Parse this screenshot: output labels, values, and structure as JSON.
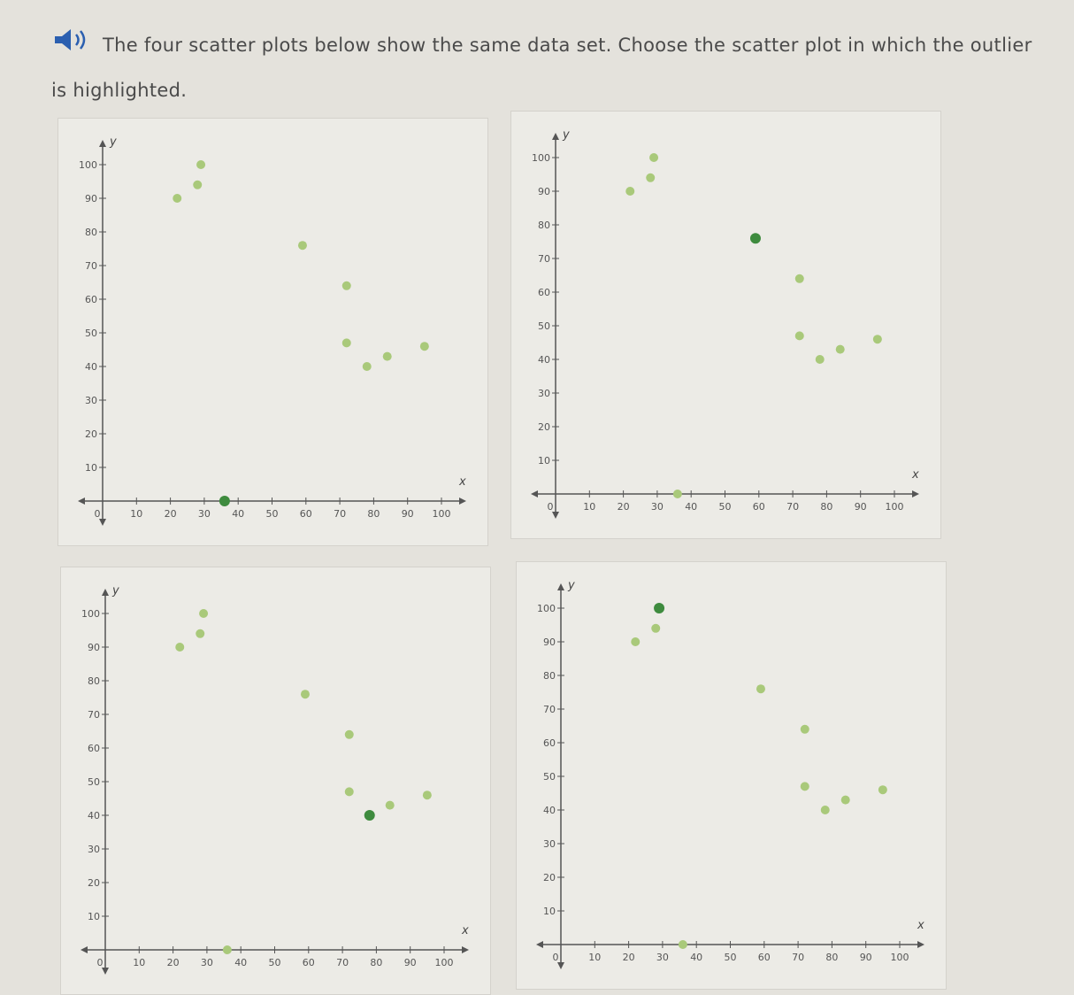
{
  "question": {
    "text": "The four scatter plots below show the same data set. Choose the scatter plot in which the outlier is highlighted.",
    "icon": "speaker-icon"
  },
  "colors": {
    "point": "#a9c97a",
    "highlight": "#3e8b3e",
    "axis": "#555555"
  },
  "chart_data": [
    {
      "type": "scatter",
      "xlabel": "x",
      "ylabel": "y",
      "xlim": [
        0,
        100
      ],
      "ylim": [
        0,
        100
      ],
      "xticks": [
        0,
        10,
        20,
        30,
        40,
        50,
        60,
        70,
        80,
        90,
        100
      ],
      "yticks": [
        10,
        20,
        30,
        40,
        50,
        60,
        70,
        80,
        90,
        100
      ],
      "points": [
        [
          22,
          90
        ],
        [
          28,
          94
        ],
        [
          29,
          100
        ],
        [
          59,
          76
        ],
        [
          72,
          64
        ],
        [
          72,
          47
        ],
        [
          78,
          40
        ],
        [
          84,
          43
        ],
        [
          95,
          46
        ],
        [
          36,
          0
        ]
      ],
      "highlighted": [
        36,
        0
      ]
    },
    {
      "type": "scatter",
      "xlabel": "x",
      "ylabel": "y",
      "xlim": [
        0,
        100
      ],
      "ylim": [
        0,
        100
      ],
      "xticks": [
        0,
        10,
        20,
        30,
        40,
        50,
        60,
        70,
        80,
        90,
        100
      ],
      "yticks": [
        10,
        20,
        30,
        40,
        50,
        60,
        70,
        80,
        90,
        100
      ],
      "points": [
        [
          22,
          90
        ],
        [
          28,
          94
        ],
        [
          29,
          100
        ],
        [
          59,
          76
        ],
        [
          72,
          64
        ],
        [
          72,
          47
        ],
        [
          78,
          40
        ],
        [
          84,
          43
        ],
        [
          95,
          46
        ],
        [
          36,
          0
        ]
      ],
      "highlighted": [
        59,
        76
      ]
    },
    {
      "type": "scatter",
      "xlabel": "x",
      "ylabel": "y",
      "xlim": [
        0,
        100
      ],
      "ylim": [
        0,
        100
      ],
      "xticks": [
        0,
        10,
        20,
        30,
        40,
        50,
        60,
        70,
        80,
        90,
        100
      ],
      "yticks": [
        10,
        20,
        30,
        40,
        50,
        60,
        70,
        80,
        90,
        100
      ],
      "points": [
        [
          22,
          90
        ],
        [
          28,
          94
        ],
        [
          29,
          100
        ],
        [
          59,
          76
        ],
        [
          72,
          64
        ],
        [
          72,
          47
        ],
        [
          78,
          40
        ],
        [
          84,
          43
        ],
        [
          95,
          46
        ],
        [
          36,
          0
        ]
      ],
      "highlighted": [
        78,
        40
      ]
    },
    {
      "type": "scatter",
      "xlabel": "x",
      "ylabel": "y",
      "xlim": [
        0,
        100
      ],
      "ylim": [
        0,
        100
      ],
      "xticks": [
        0,
        10,
        20,
        30,
        40,
        50,
        60,
        70,
        80,
        90,
        100
      ],
      "yticks": [
        10,
        20,
        30,
        40,
        50,
        60,
        70,
        80,
        90,
        100
      ],
      "points": [
        [
          22,
          90
        ],
        [
          28,
          94
        ],
        [
          29,
          100
        ],
        [
          59,
          76
        ],
        [
          72,
          64
        ],
        [
          72,
          47
        ],
        [
          78,
          40
        ],
        [
          84,
          43
        ],
        [
          95,
          46
        ],
        [
          36,
          0
        ]
      ],
      "highlighted": [
        29,
        100
      ]
    }
  ]
}
